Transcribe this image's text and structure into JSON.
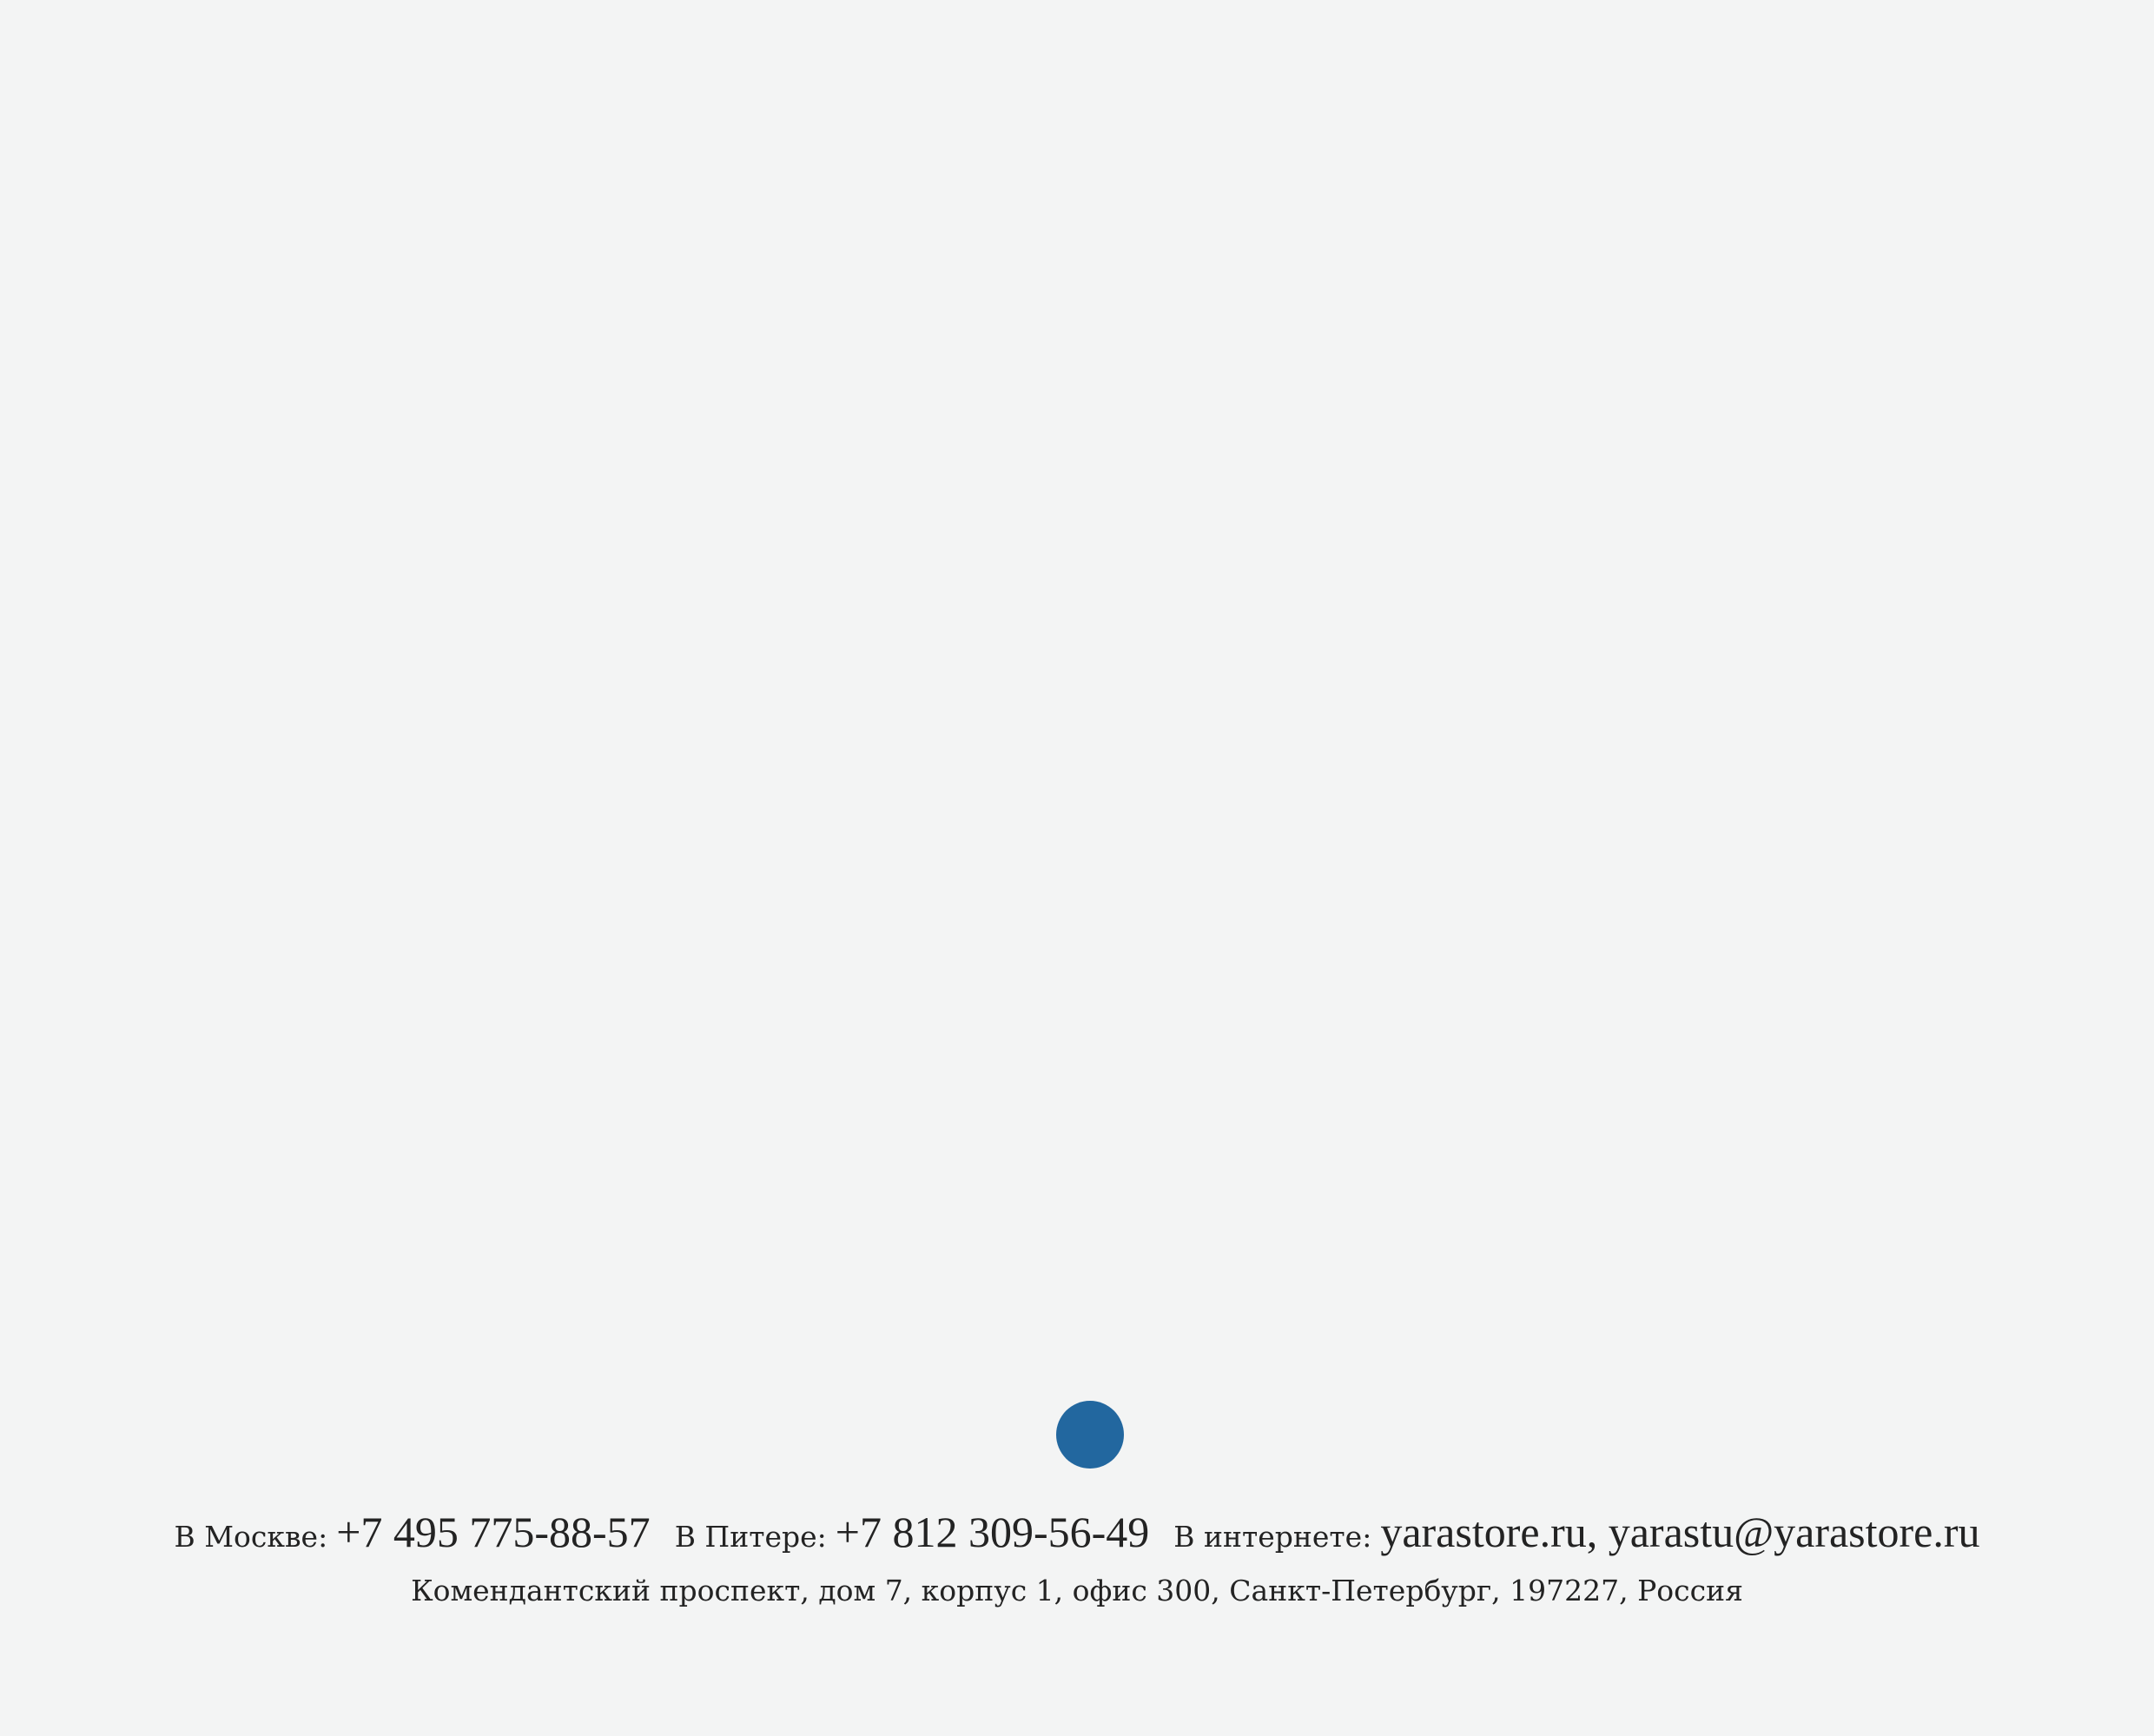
{
  "colors": {
    "background": "#f3f4f4",
    "accent_dot": "#22679f",
    "text": "#232323"
  },
  "contacts": [
    {
      "label": "В Москве:",
      "value": "+7 495 775-88-57"
    },
    {
      "label": "В Питере:",
      "value": "+7 812 309-56-49"
    },
    {
      "label": "В интернете:",
      "value": "yarastore.ru, yarastu@yarastore.ru"
    }
  ],
  "address": "Комендантский проспект, дом 7, корпус 1, офис 300, Санкт-Петербург, 197227, Россия"
}
